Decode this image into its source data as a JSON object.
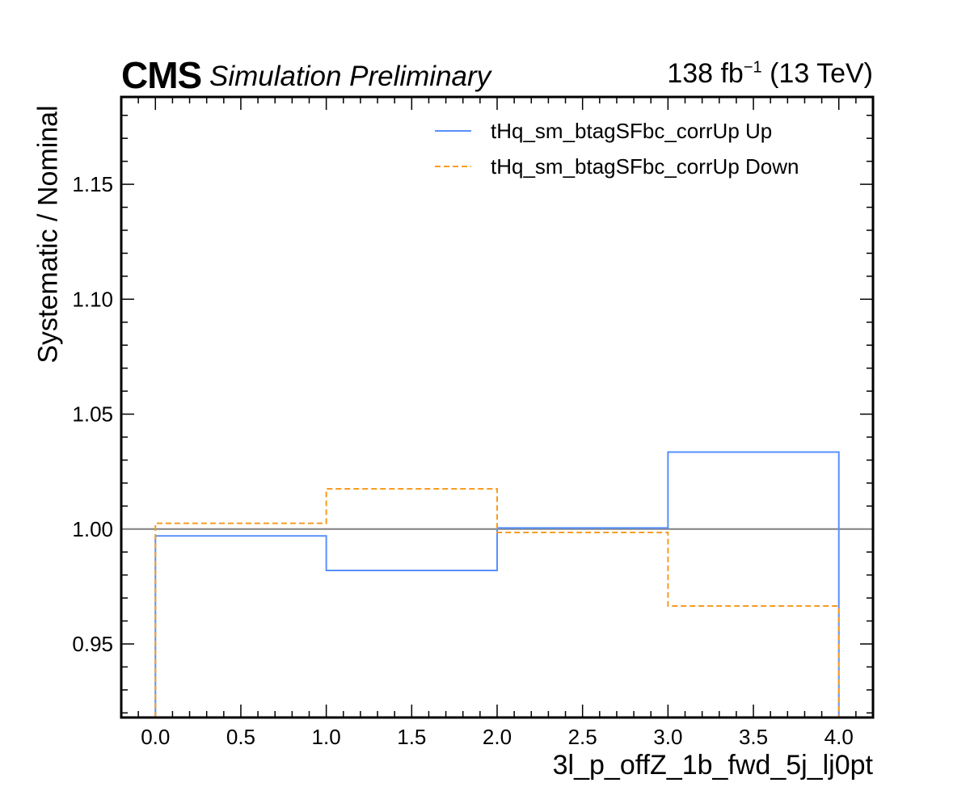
{
  "header": {
    "experiment": "CMS",
    "status": "Simulation Preliminary",
    "lumi_value": "138 fb",
    "lumi_exponent": "−1",
    "energy": "(13 TeV)"
  },
  "chart_data": {
    "type": "line",
    "drawstyle": "steps",
    "xlabel": "3l_p_offZ_1b_fwd_5j_lj0pt",
    "ylabel": "Systematic / Nominal",
    "xlim": [
      -0.2,
      4.2
    ],
    "ylim": [
      0.918,
      1.188
    ],
    "x_ticks": [
      "0.0",
      "0.5",
      "1.0",
      "1.5",
      "2.0",
      "2.5",
      "3.0",
      "3.5",
      "4.0"
    ],
    "y_ticks": [
      "0.95",
      "1.00",
      "1.05",
      "1.10",
      "1.15"
    ],
    "bin_edges": [
      0,
      1,
      2,
      3,
      4
    ],
    "reference_line": 1.0,
    "grid": false,
    "legend_position": "top-right",
    "series": [
      {
        "name": "tHq_sm_btagSFbc_corrUp Up",
        "values": [
          0.997,
          0.982,
          1.0005,
          1.0335
        ],
        "color": "#5790fc",
        "style": "solid"
      },
      {
        "name": "tHq_sm_btagSFbc_corrUp Down",
        "values": [
          1.0025,
          1.0175,
          0.9985,
          0.9665
        ],
        "color": "#f89c20",
        "style": "dashed"
      }
    ]
  }
}
